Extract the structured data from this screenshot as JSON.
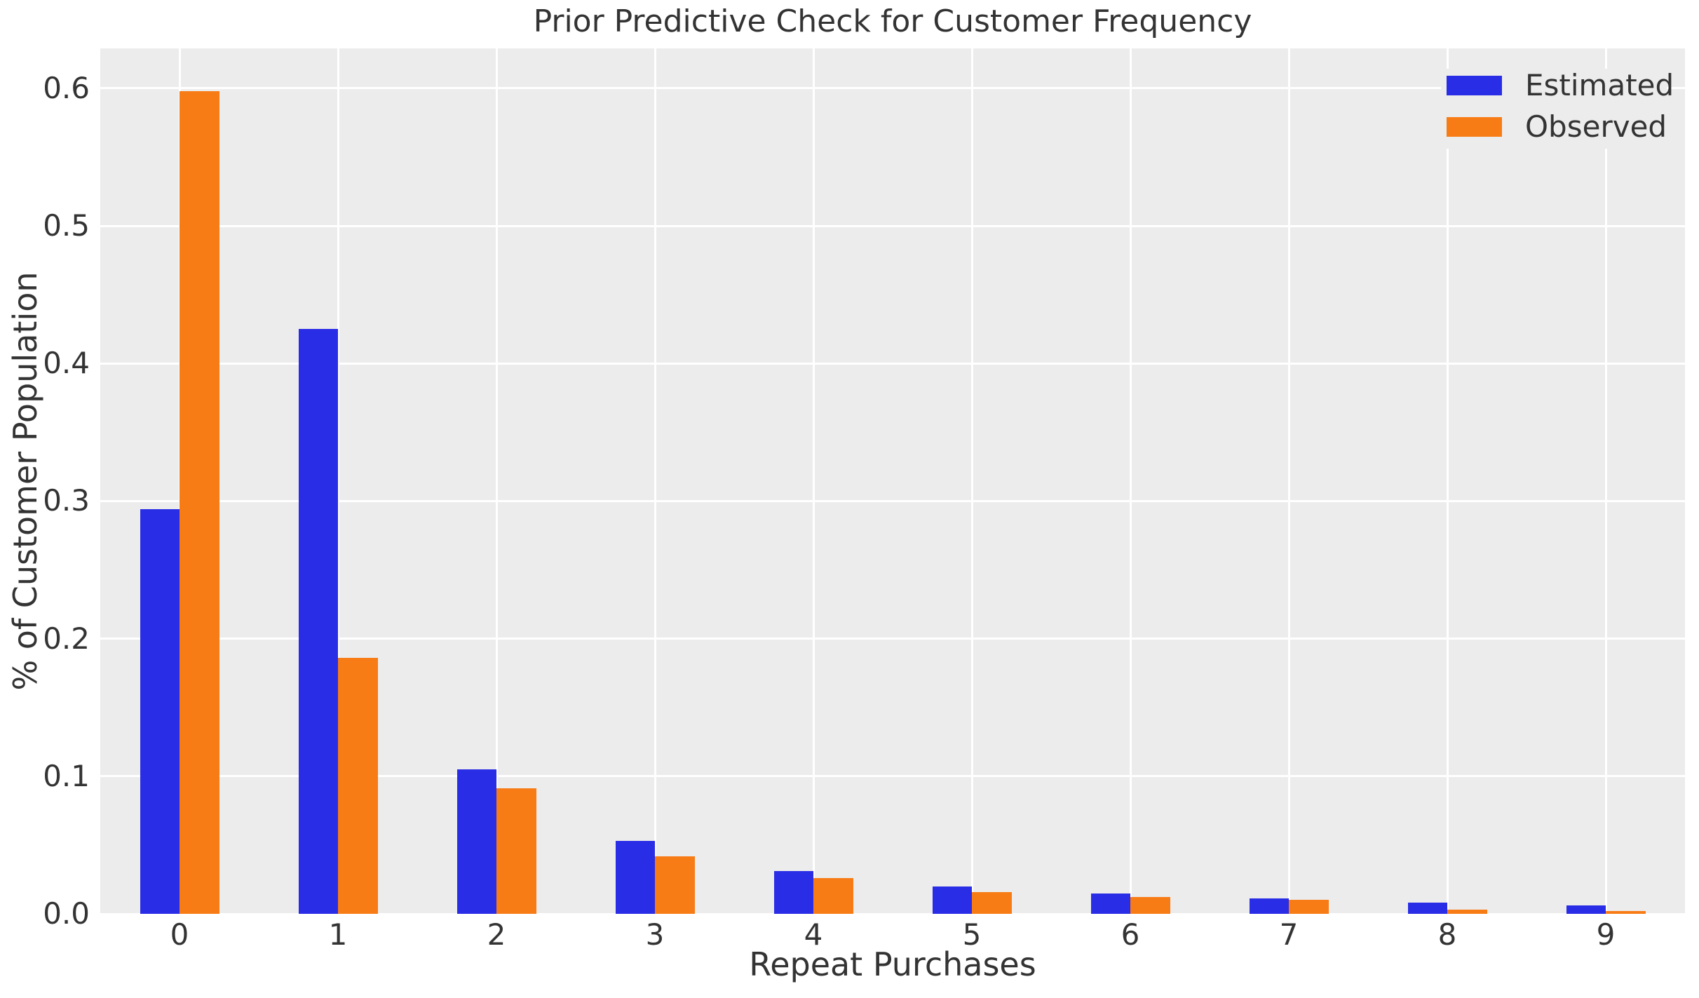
{
  "chart_data": {
    "type": "bar",
    "title": "Prior Predictive Check for Customer Frequency",
    "xlabel": "Repeat Purchases",
    "ylabel": "% of Customer Population",
    "categories": [
      "0",
      "1",
      "2",
      "3",
      "4",
      "5",
      "6",
      "7",
      "8",
      "9"
    ],
    "series": [
      {
        "name": "Estimated",
        "color": "#2A2DE6",
        "values": [
          0.294,
          0.425,
          0.105,
          0.053,
          0.031,
          0.02,
          0.015,
          0.011,
          0.008,
          0.006
        ]
      },
      {
        "name": "Observed",
        "color": "#F87C16",
        "values": [
          0.598,
          0.186,
          0.091,
          0.042,
          0.026,
          0.016,
          0.012,
          0.01,
          0.003,
          0.002
        ]
      }
    ],
    "yticks": [
      "0.0",
      "0.1",
      "0.2",
      "0.3",
      "0.4",
      "0.5",
      "0.6"
    ],
    "ylim": [
      0,
      0.629
    ],
    "grid": true,
    "legend_position": "upper right",
    "plot_background": "#ECECEC",
    "grid_color": "#FFFFFF",
    "text_color": "#333333",
    "figure_background": "#FFFFFF"
  }
}
